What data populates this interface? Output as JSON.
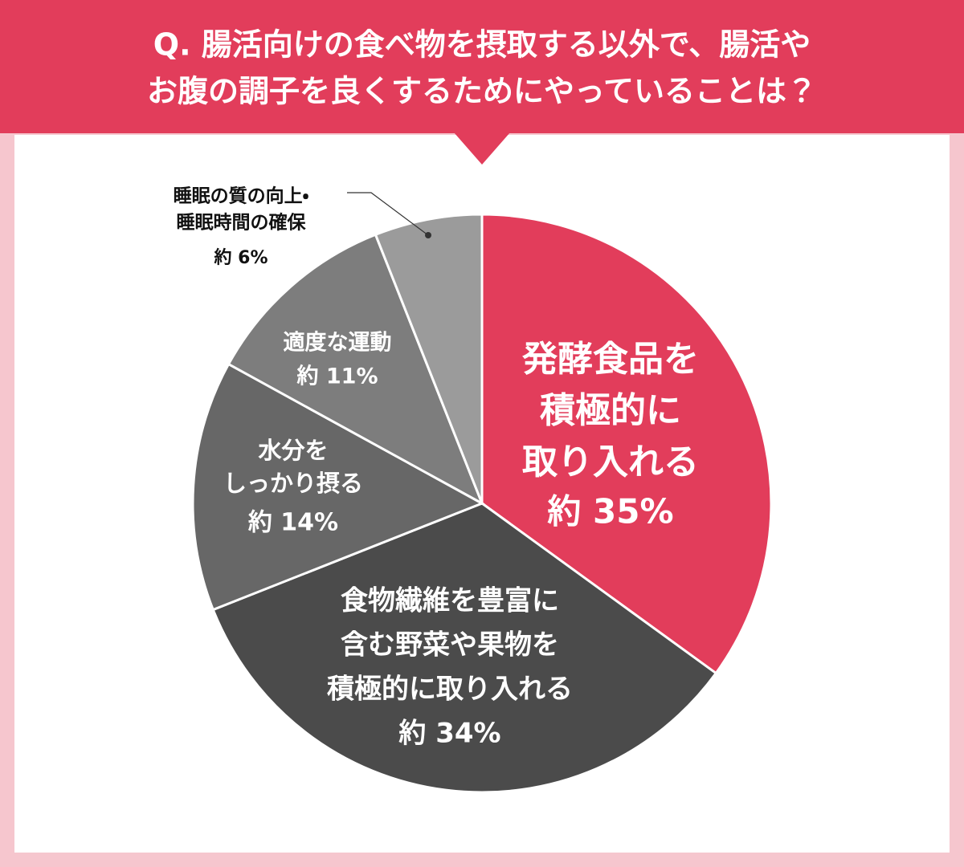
{
  "chart_data": {
    "type": "pie",
    "title": [
      "Q. 腸活向けの食べ物を摂取する以外で、腸活や",
      "お腹の調子を良くするためにやっていることは？"
    ],
    "categories": [
      [
        "発酵食品を",
        "積極的に",
        "取り入れる"
      ],
      [
        "食物繊維を豊富に",
        "含む野菜や果物を",
        "積極的に取り入れる"
      ],
      [
        "水分を",
        "しっかり摂る"
      ],
      [
        "適度な運動"
      ],
      [
        "睡眠の質の向上・",
        "睡眠時間の確保"
      ]
    ],
    "values": [
      35,
      34,
      14,
      11,
      6
    ],
    "value_labels": [
      "約 35%",
      "約 34%",
      "約 14%",
      "約 11%",
      "約 6%"
    ],
    "colors": [
      "#e23d5b",
      "#4b4b4b",
      "#676767",
      "#7d7d7d",
      "#9b9b9b"
    ]
  }
}
